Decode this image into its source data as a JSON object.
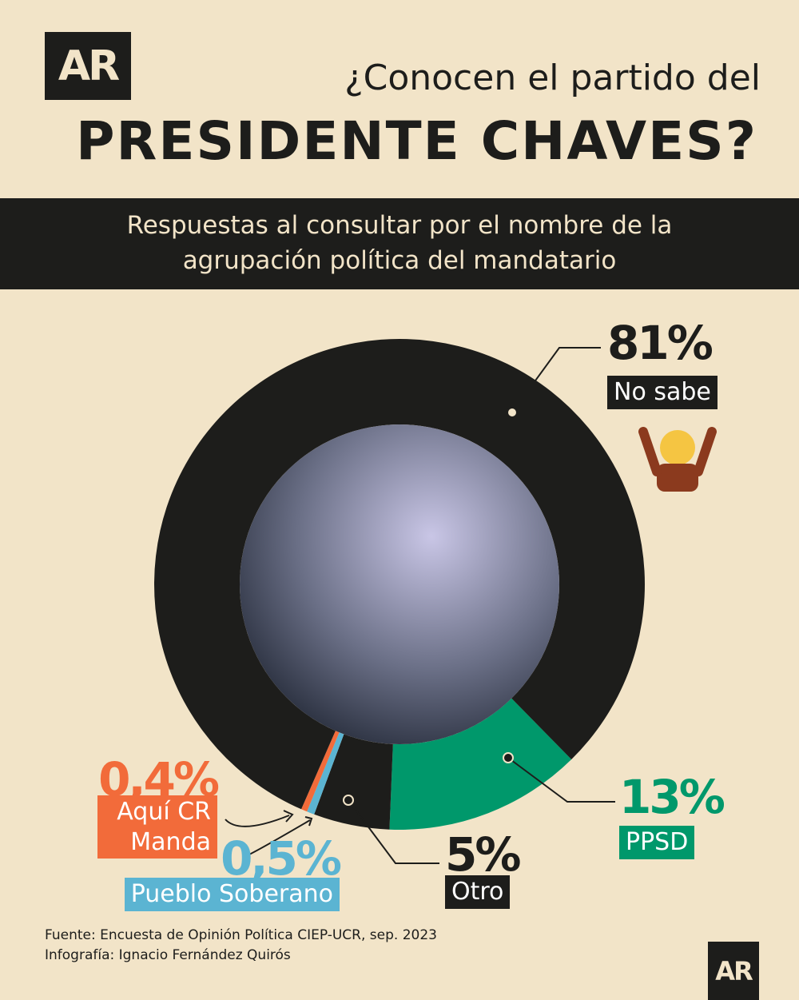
{
  "logo": "AR",
  "kicker": "¿Conocen el partido del",
  "title": "PRESIDENTE CHAVES?",
  "subtitle": "Respuestas al consultar por el nombre de la agrupación política del mandatario",
  "chart_data": {
    "type": "donut",
    "categories": [
      "PPSD",
      "Otro",
      "Pueblo Soberano",
      "Aquí CR Manda",
      "No sabe"
    ],
    "values": [
      13,
      5,
      0.5,
      0.4,
      81
    ],
    "value_labels": [
      "13%",
      "5%",
      "0,5%",
      "0,4%",
      "81%"
    ],
    "colors": [
      "#00986b",
      "#1d1d1b",
      "#5bb4d2",
      "#f26b3a",
      "#1d1d1b"
    ]
  },
  "source": "Fuente: Encuesta de Opinión Política CIEP-UCR, sep. 2023",
  "credit": "Infografía: Ignacio Fernández Quirós"
}
